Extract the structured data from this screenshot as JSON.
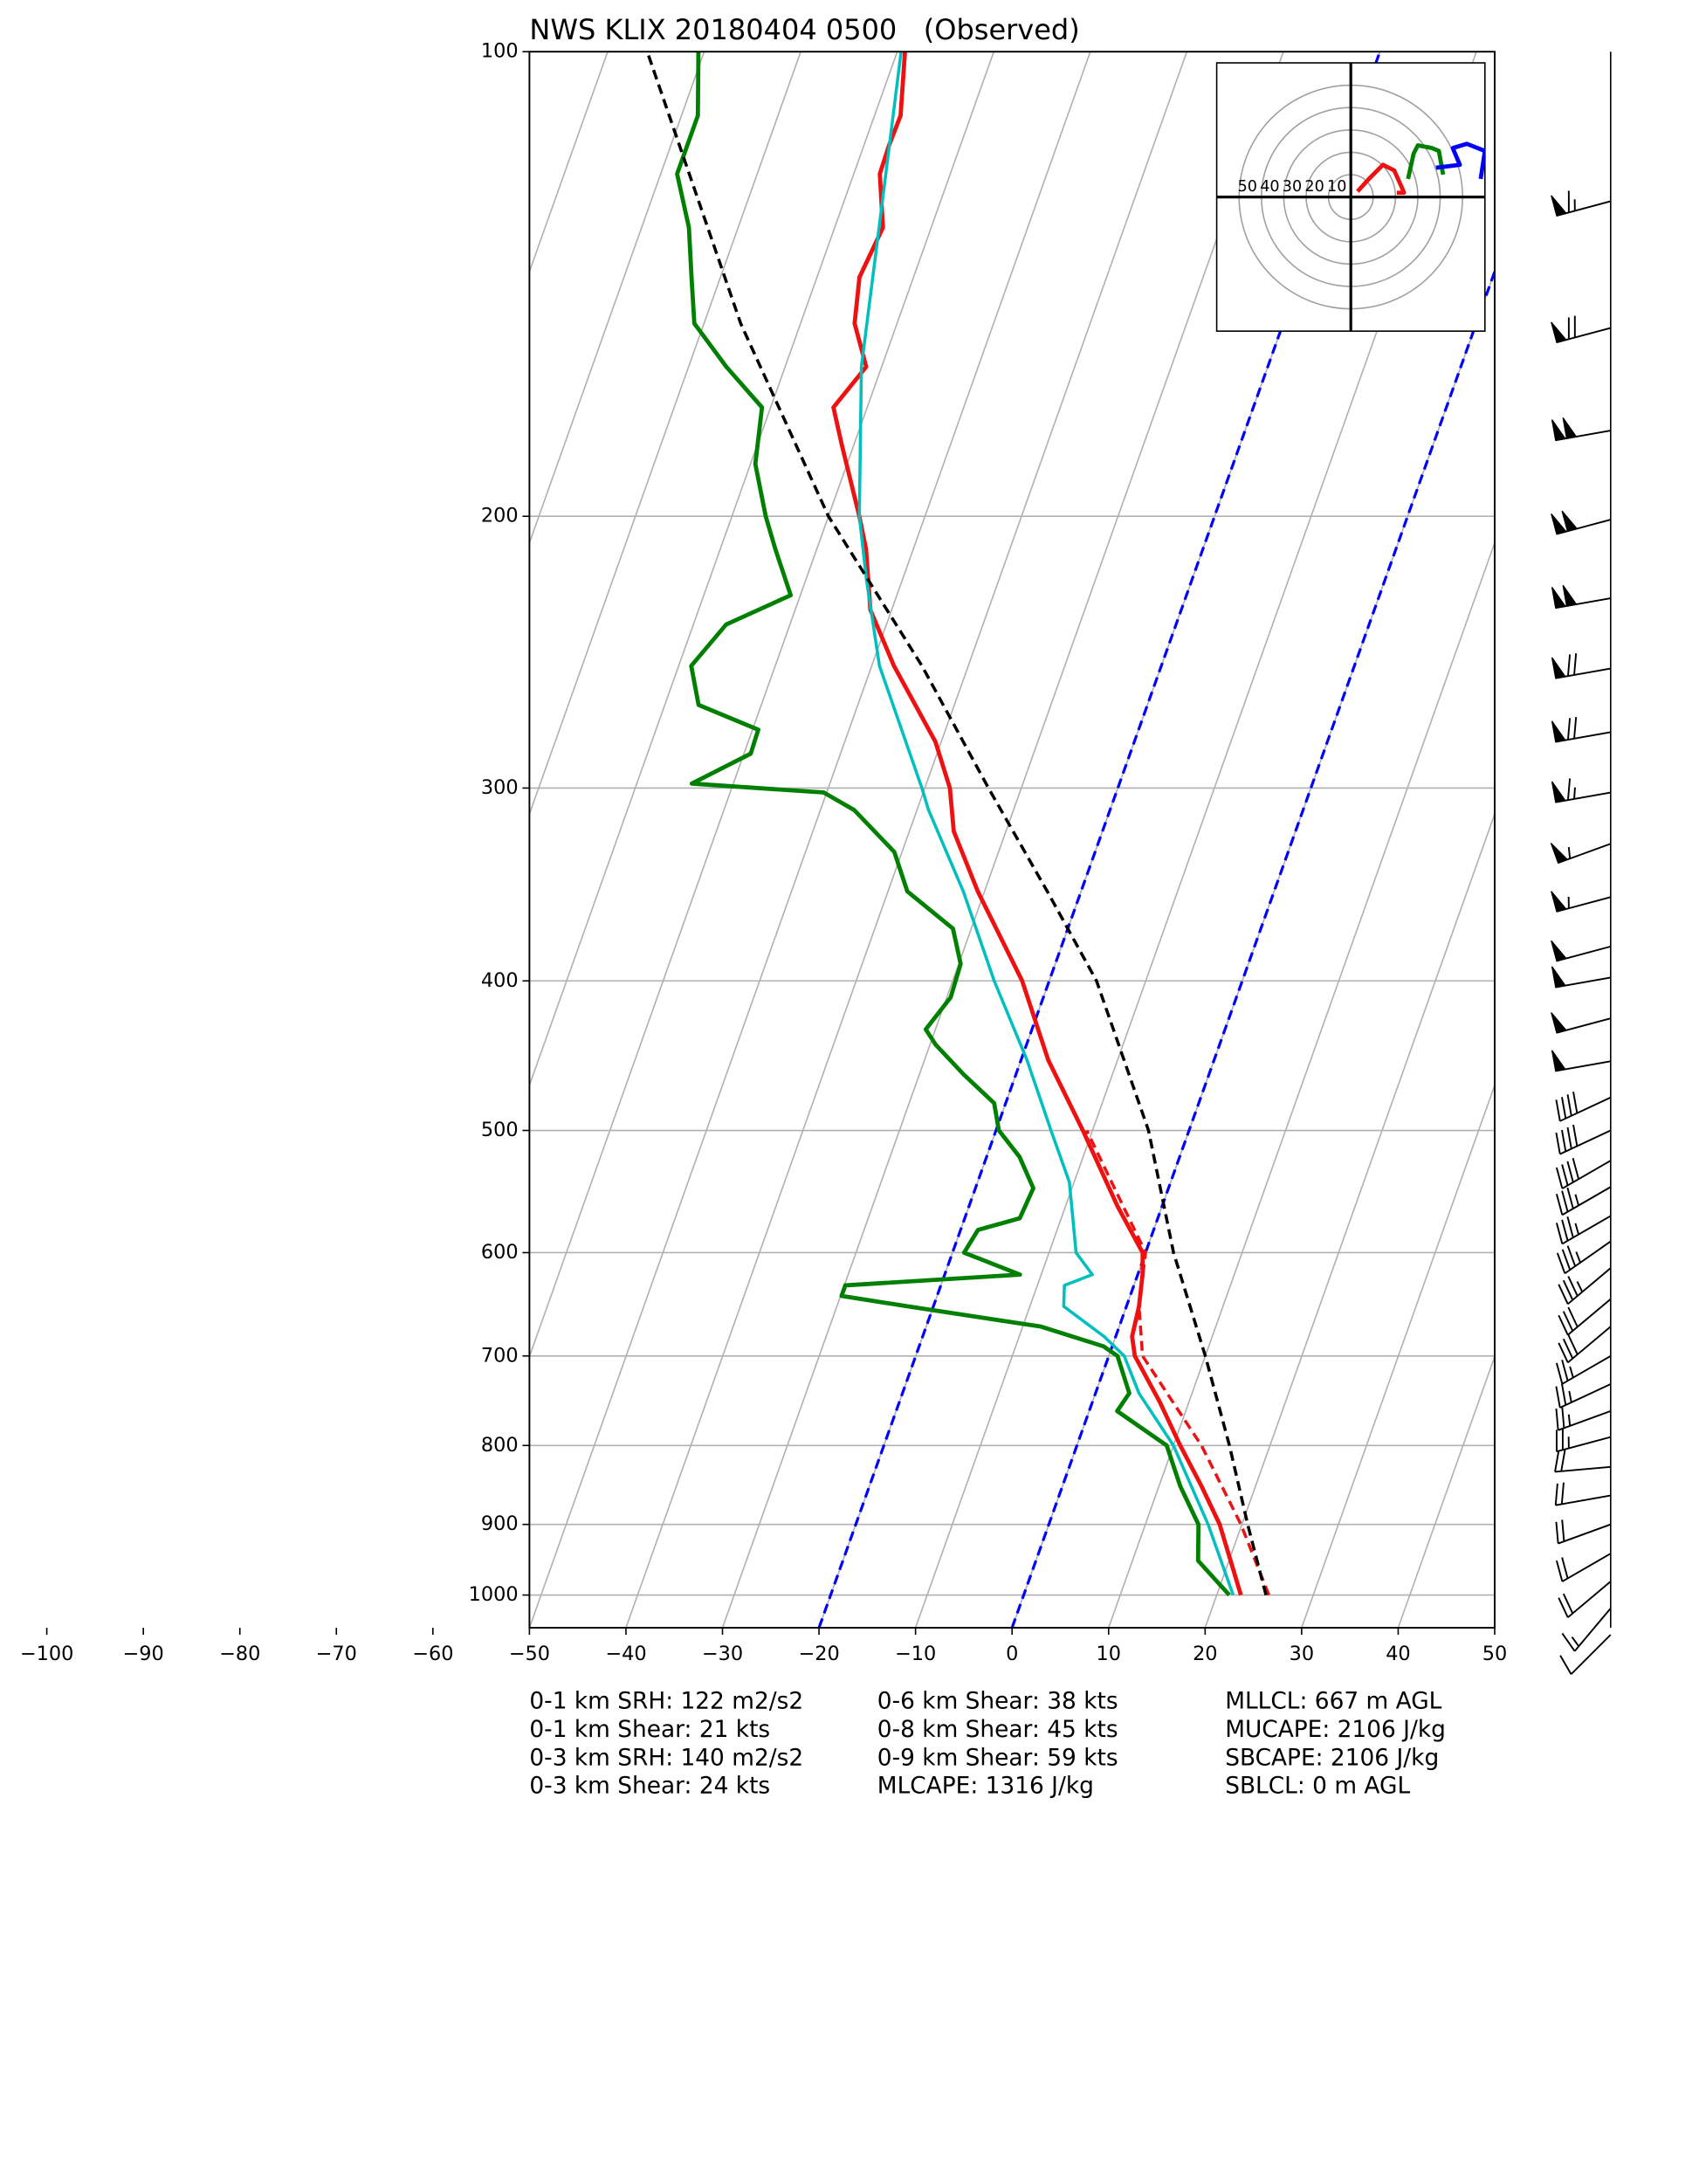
{
  "chart_data": {
    "type": "skewt",
    "title": "NWS KLIX 20180404 0500   (Observed)",
    "xlim": [
      -50,
      50
    ],
    "ylim": [
      1050,
      100
    ],
    "log_y": true,
    "grid": true,
    "xticks": [
      {
        "value": -100,
        "label": "−100"
      },
      {
        "value": -90,
        "label": "−90"
      },
      {
        "value": -80,
        "label": "−80"
      },
      {
        "value": -70,
        "label": "−70"
      },
      {
        "value": -60,
        "label": "−60"
      },
      {
        "value": -50,
        "label": "−50"
      },
      {
        "value": -40,
        "label": "−40"
      },
      {
        "value": -30,
        "label": "−30"
      },
      {
        "value": -20,
        "label": "−20"
      },
      {
        "value": -10,
        "label": "−10"
      },
      0,
      10,
      20,
      30,
      40,
      50
    ],
    "yticks": [
      100,
      200,
      300,
      400,
      500,
      600,
      700,
      800,
      900,
      1000
    ],
    "series": [
      {
        "color": "#ee1111",
        "style": "solid",
        "width": 3,
        "pressure": [
          1000,
          900,
          850,
          800,
          750,
          700,
          680,
          650,
          620,
          600,
          560,
          500,
          450,
          400,
          350,
          320,
          300,
          280,
          250,
          230,
          210,
          200,
          180,
          170,
          160,
          150,
          140,
          130,
          120,
          115,
          110,
          100
        ],
        "values": [
          22.5,
          17.7,
          14.4,
          10.7,
          7.0,
          2.7,
          1.7,
          1.3,
          0.5,
          -0.3,
          -4.6,
          -11.0,
          -17.2,
          -22.8,
          -30.7,
          -35.4,
          -37.4,
          -40.6,
          -47.7,
          -52.2,
          -54.9,
          -56.8,
          -61.2,
          -63.5,
          -61.6,
          -64.4,
          -65.6,
          -65.0,
          -67.3,
          -67.4,
          -67.3,
          -69.2
        ]
      },
      {
        "color": "#00bfbf",
        "style": "solid",
        "width": 2.2,
        "pressure": [
          1000,
          900,
          800,
          740,
          700,
          680,
          650,
          630,
          620,
          600,
          570,
          540,
          500,
          450,
          400,
          350,
          310,
          300,
          250,
          220,
          200,
          160,
          130,
          100
        ],
        "values": [
          21.7,
          16.5,
          10.0,
          4.5,
          1.6,
          -1.2,
          -6.5,
          -7.2,
          -4.7,
          -7.2,
          -8.8,
          -10.5,
          -14.3,
          -19.4,
          -25.7,
          -32.2,
          -38.8,
          -40.3,
          -49.2,
          -53.7,
          -56.8,
          -62.1,
          -65.4,
          -69.6
        ]
      },
      {
        "color": "#008000",
        "style": "solid",
        "width": 3,
        "pressure": [
          1000,
          950,
          900,
          850,
          800,
          760,
          740,
          700,
          690,
          670,
          650,
          640,
          630,
          620,
          600,
          580,
          570,
          545,
          520,
          500,
          480,
          460,
          440,
          430,
          410,
          390,
          370,
          350,
          330,
          310,
          302,
          298,
          285,
          275,
          265,
          250,
          235,
          225,
          210,
          200,
          185,
          170,
          160,
          150,
          140,
          130,
          120,
          110,
          100
        ],
        "values": [
          21.3,
          16.8,
          15.5,
          12.2,
          9.3,
          2.9,
          3.5,
          0.9,
          -0.9,
          -8.1,
          -22.7,
          -29.9,
          -29.9,
          -12.2,
          -18.8,
          -18.2,
          -14.3,
          -14.0,
          -16.6,
          -19.7,
          -21.2,
          -25.4,
          -29.4,
          -31.0,
          -29.6,
          -29.8,
          -31.9,
          -38.0,
          -40.8,
          -46.5,
          -50.3,
          -64.3,
          -59.3,
          -59.4,
          -66.5,
          -68.7,
          -66.6,
          -61.0,
          -64.3,
          -66.5,
          -69.5,
          -70.9,
          -76.1,
          -81.0,
          -83.0,
          -85.1,
          -88.3,
          -88.3,
          -90.6
        ]
      },
      {
        "color": "#ee1111",
        "style": "dashed",
        "width": 2.2,
        "pressure": [
          1000,
          900,
          800,
          700,
          650,
          600,
          500
        ],
        "values": [
          25.4,
          19.9,
          12.9,
          3.5,
          1.3,
          0.0,
          -10.6
        ]
      },
      {
        "color": "#000000",
        "style": "dashed",
        "width": 2.2,
        "pressure": [
          1000,
          900,
          800,
          700,
          600,
          500,
          400,
          350,
          300,
          250,
          200,
          150,
          100
        ],
        "values": [
          25.1,
          20.6,
          15.8,
          10.0,
          2.9,
          -4.2,
          -15.1,
          -23.5,
          -33.4,
          -44.8,
          -60.0,
          -76.2,
          -95.9
        ]
      }
    ],
    "highlight_isotherms": {
      "values": [
        -20,
        0
      ],
      "color": "#0000ff"
    },
    "wind": {
      "pressure": [
        125,
        151,
        176,
        201,
        226,
        251,
        276,
        302,
        326,
        353,
        380,
        398,
        423,
        451,
        476,
        500,
        523,
        544,
        568,
        590,
        614,
        643,
        670,
        700,
        730,
        760,
        790,
        826,
        862,
        900,
        940,
        980,
        1020,
        1061
      ],
      "speed": [
        65,
        70,
        100,
        100,
        100,
        70,
        70,
        65,
        55,
        55,
        50,
        50,
        50,
        50,
        40,
        40,
        40,
        35,
        35,
        35,
        35,
        30,
        30,
        25,
        25,
        25,
        25,
        20,
        20,
        20,
        20,
        20,
        15,
        10
      ],
      "direction": [
        255,
        255,
        260,
        255,
        260,
        260,
        260,
        260,
        250,
        255,
        255,
        260,
        255,
        260,
        245,
        245,
        240,
        240,
        240,
        235,
        230,
        230,
        230,
        240,
        245,
        250,
        255,
        265,
        260,
        250,
        240,
        230,
        220,
        225
      ]
    },
    "hodograph": {
      "lim": [
        -60,
        60
      ],
      "rings": [
        10,
        20,
        30,
        40,
        50
      ],
      "series": [
        {
          "color": "#ee1111",
          "u": [
            20.6,
            23.8,
            22.5,
            19.4,
            14.4,
            8.0,
            3.0
          ],
          "v": [
            1.9,
            1.9,
            5.0,
            11.9,
            14.4,
            8.0,
            2.5
          ]
        },
        {
          "color": "#008000",
          "u": [
            25.6,
            28.1,
            30.0,
            36.3,
            39.4,
            41.3
          ],
          "v": [
            8.1,
            19.4,
            23.1,
            21.9,
            20.6,
            10.0
          ]
        },
        {
          "color": "#0000ff",
          "u": [
            38.1,
            48.8,
            45.6,
            51.9,
            60.0,
            58.1
          ],
          "v": [
            13.1,
            14.4,
            21.9,
            23.8,
            20.6,
            8.1
          ]
        }
      ]
    },
    "stats": [
      [
        "0-1 km SRH: 122 m2/s2",
        "0-1 km Shear: 21 kts",
        "0-3 km SRH: 140 m2/s2",
        "0-3 km Shear: 24 kts"
      ],
      [
        "0-6 km Shear: 38 kts",
        "0-8 km Shear: 45 kts",
        "0-9 km Shear: 59 kts",
        "MLCAPE: 1316 J/kg"
      ],
      [
        "MLLCL: 667 m AGL",
        "MUCAPE: 2106 J/kg",
        "SBCAPE: 2106 J/kg",
        "SBLCL: 0 m AGL"
      ]
    ]
  }
}
